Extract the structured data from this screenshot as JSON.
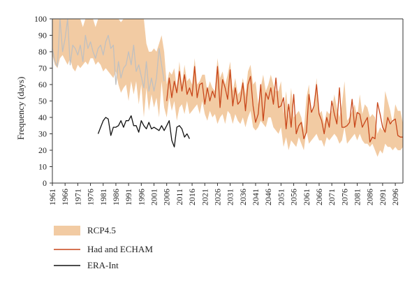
{
  "chart_data": {
    "type": "line",
    "title": "",
    "xlabel": "",
    "ylabel": "Frequency (days)",
    "xlim": [
      1961,
      2099
    ],
    "ylim": [
      0,
      100
    ],
    "yticks": [
      0,
      10,
      20,
      30,
      40,
      50,
      60,
      70,
      80,
      90,
      100
    ],
    "xticks": [
      1961,
      1966,
      1971,
      1976,
      1981,
      1986,
      1991,
      1996,
      2001,
      2006,
      2011,
      2016,
      2021,
      2026,
      2031,
      2036,
      2041,
      2046,
      2051,
      2056,
      2061,
      2066,
      2071,
      2076,
      2081,
      2086,
      2091,
      2096
    ],
    "grid": false,
    "legend": {
      "position": "bottom-left"
    },
    "colors": {
      "band": "#f2cba3",
      "model_future": "#c8461a",
      "model_historic": "#c0c0c0",
      "era": "#111111"
    },
    "series": [
      {
        "name": "RCP4.5",
        "kind": "band",
        "x": [
          1961,
          1962,
          1963,
          1964,
          1965,
          1966,
          1967,
          1968,
          1969,
          1970,
          1971,
          1972,
          1973,
          1974,
          1975,
          1976,
          1977,
          1978,
          1979,
          1980,
          1981,
          1982,
          1983,
          1984,
          1985,
          1986,
          1987,
          1988,
          1989,
          1990,
          1991,
          1992,
          1993,
          1994,
          1995,
          1996,
          1997,
          1998,
          1999,
          2000,
          2001,
          2002,
          2003,
          2004,
          2005,
          2006,
          2007,
          2008,
          2009,
          2010,
          2011,
          2012,
          2013,
          2014,
          2015,
          2016,
          2017,
          2018,
          2019,
          2020,
          2021,
          2022,
          2023,
          2024,
          2025,
          2026,
          2027,
          2028,
          2029,
          2030,
          2031,
          2032,
          2033,
          2034,
          2035,
          2036,
          2037,
          2038,
          2039,
          2040,
          2041,
          2042,
          2043,
          2044,
          2045,
          2046,
          2047,
          2048,
          2049,
          2050,
          2051,
          2052,
          2053,
          2054,
          2055,
          2056,
          2057,
          2058,
          2059,
          2060,
          2061,
          2062,
          2063,
          2064,
          2065,
          2066,
          2067,
          2068,
          2069,
          2070,
          2071,
          2072,
          2073,
          2074,
          2075,
          2076,
          2077,
          2078,
          2079,
          2080,
          2081,
          2082,
          2083,
          2084,
          2085,
          2086,
          2087,
          2088,
          2089,
          2090,
          2091,
          2092,
          2093,
          2094,
          2095,
          2096,
          2097,
          2098,
          2099
        ],
        "upper": [
          100,
          100,
          100,
          100,
          100,
          100,
          100,
          100,
          100,
          100,
          100,
          100,
          95,
          100,
          100,
          100,
          100,
          95,
          100,
          100,
          100,
          100,
          100,
          100,
          100,
          100,
          100,
          98,
          100,
          100,
          100,
          100,
          100,
          100,
          100,
          100,
          100,
          85,
          80,
          80,
          82,
          80,
          85,
          90,
          80,
          60,
          68,
          66,
          70,
          58,
          74,
          60,
          72,
          62,
          64,
          60,
          76,
          60,
          62,
          66,
          66,
          56,
          62,
          58,
          56,
          76,
          64,
          68,
          60,
          66,
          74,
          56,
          64,
          54,
          56,
          64,
          54,
          68,
          72,
          60,
          62,
          48,
          58,
          66,
          56,
          60,
          66,
          60,
          56,
          56,
          62,
          42,
          56,
          40,
          58,
          40,
          42,
          44,
          40,
          32,
          52,
          60,
          42,
          48,
          64,
          42,
          44,
          36,
          44,
          42,
          44,
          54,
          46,
          40,
          48,
          62,
          38,
          40,
          44,
          48,
          40,
          54,
          42,
          48,
          46,
          40,
          42,
          40,
          30,
          34,
          32,
          56,
          50,
          44,
          36,
          48,
          44,
          44,
          36
        ],
        "lower": [
          78,
          72,
          70,
          76,
          78,
          75,
          72,
          76,
          70,
          68,
          72,
          70,
          72,
          74,
          72,
          76,
          76,
          72,
          74,
          72,
          68,
          70,
          68,
          66,
          64,
          68,
          60,
          55,
          58,
          60,
          50,
          62,
          54,
          62,
          48,
          60,
          40,
          58,
          44,
          54,
          46,
          52,
          40,
          62,
          46,
          40,
          52,
          44,
          50,
          38,
          46,
          48,
          42,
          50,
          42,
          44,
          46,
          48,
          42,
          50,
          42,
          38,
          44,
          40,
          42,
          36,
          40,
          42,
          36,
          44,
          42,
          36,
          42,
          38,
          36,
          40,
          34,
          40,
          44,
          34,
          32,
          34,
          38,
          36,
          34,
          40,
          40,
          34,
          32,
          30,
          34,
          22,
          28,
          20,
          26,
          24,
          22,
          28,
          24,
          20,
          32,
          24,
          26,
          28,
          30,
          26,
          26,
          22,
          28,
          26,
          28,
          30,
          28,
          24,
          26,
          34,
          24,
          26,
          28,
          30,
          26,
          30,
          26,
          24,
          24,
          22,
          24,
          20,
          16,
          20,
          18,
          24,
          22,
          22,
          20,
          22,
          20,
          20,
          22
        ]
      },
      {
        "name": "Had and ECHAM",
        "kind": "line",
        "x": [
          2006,
          2007,
          2008,
          2009,
          2010,
          2011,
          2012,
          2013,
          2014,
          2015,
          2016,
          2017,
          2018,
          2019,
          2020,
          2021,
          2022,
          2023,
          2024,
          2025,
          2026,
          2027,
          2028,
          2029,
          2030,
          2031,
          2032,
          2033,
          2034,
          2035,
          2036,
          2037,
          2038,
          2039,
          2040,
          2041,
          2042,
          2043,
          2044,
          2045,
          2046,
          2047,
          2048,
          2049,
          2050,
          2051,
          2052,
          2053,
          2054,
          2055,
          2056,
          2057,
          2058,
          2059,
          2060,
          2061,
          2062,
          2063,
          2064,
          2065,
          2066,
          2067,
          2068,
          2069,
          2070,
          2071,
          2072,
          2073,
          2074,
          2075,
          2076,
          2077,
          2078,
          2079,
          2080,
          2081,
          2082,
          2083,
          2084,
          2085,
          2086,
          2087,
          2088,
          2089,
          2090,
          2091,
          2092,
          2093,
          2094,
          2095,
          2096,
          2097,
          2098,
          2099
        ],
        "y": [
          50,
          64,
          52,
          62,
          55,
          68,
          56,
          66,
          54,
          58,
          53,
          71,
          52,
          60,
          61,
          48,
          58,
          50,
          56,
          52,
          71,
          46,
          63,
          58,
          51,
          69,
          47,
          58,
          48,
          50,
          61,
          44,
          60,
          65,
          47,
          37,
          42,
          60,
          38,
          55,
          51,
          58,
          48,
          64,
          46,
          47,
          52,
          33,
          48,
          34,
          54,
          30,
          35,
          37,
          27,
          31,
          54,
          43,
          47,
          60,
          42,
          38,
          30,
          40,
          34,
          50,
          42,
          36,
          58,
          34,
          34,
          35,
          37,
          51,
          34,
          43,
          42,
          34,
          37,
          40,
          25,
          28,
          27,
          49,
          42,
          34,
          31,
          40,
          36,
          38,
          39,
          29,
          28,
          28
        ]
      },
      {
        "name": "",
        "kind": "line",
        "x": [
          1961,
          1962,
          1963,
          1964,
          1965,
          1966,
          1967,
          1968,
          1969,
          1970,
          1971,
          1972,
          1973,
          1974,
          1975,
          1976,
          1977,
          1978,
          1979,
          1980,
          1981,
          1982,
          1983,
          1984,
          1985,
          1986,
          1987,
          1988,
          1989,
          1990,
          1991,
          1992,
          1993,
          1994,
          1995,
          1996,
          1997,
          1998,
          1999,
          2000,
          2001,
          2002,
          2003,
          2004,
          2005
        ],
        "y": [
          82,
          74,
          71,
          100,
          80,
          88,
          100,
          72,
          84,
          82,
          78,
          84,
          74,
          90,
          82,
          86,
          80,
          76,
          82,
          84,
          78,
          86,
          90,
          82,
          84,
          60,
          74,
          64,
          70,
          72,
          80,
          72,
          84,
          68,
          72,
          65,
          58,
          74,
          56,
          64,
          56,
          64,
          82,
          72,
          62
        ]
      },
      {
        "name": "ERA-Int",
        "kind": "line",
        "x": [
          1979,
          1980,
          1981,
          1982,
          1983,
          1984,
          1985,
          1986,
          1987,
          1988,
          1989,
          1990,
          1991,
          1992,
          1993,
          1994,
          1995,
          1996,
          1997,
          1998,
          1999,
          2000,
          2001,
          2002,
          2003,
          2004,
          2005,
          2006,
          2007,
          2008,
          2009,
          2010,
          2011,
          2012,
          2013,
          2014,
          2015
        ],
        "y": [
          30,
          34,
          38,
          40,
          39,
          29,
          34,
          34,
          35,
          38,
          34,
          38,
          38,
          41,
          35,
          35,
          31,
          38,
          35,
          33,
          37,
          33,
          34,
          33,
          32,
          35,
          32,
          35,
          38,
          26,
          22,
          34,
          35,
          33,
          28,
          30,
          27
        ]
      }
    ]
  }
}
